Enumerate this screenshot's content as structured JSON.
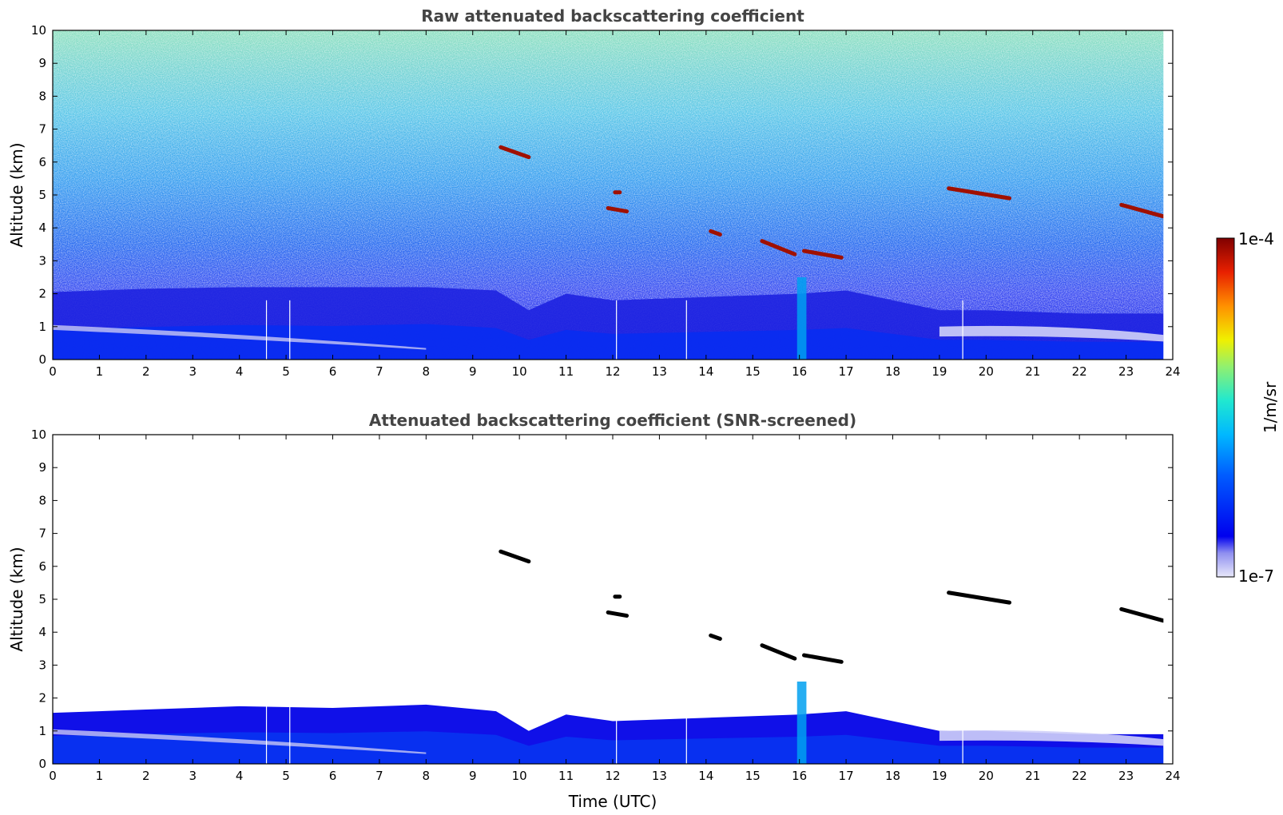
{
  "chart_data": [
    {
      "type": "heatmap",
      "title": "Raw attenuated backscattering coefficient",
      "xlabel": "",
      "ylabel": "Altitude (km)",
      "xlim": [
        0,
        24
      ],
      "ylim": [
        0,
        10
      ],
      "xticks": [
        "0",
        "1",
        "2",
        "3",
        "4",
        "5",
        "6",
        "7",
        "8",
        "9",
        "10",
        "11",
        "12",
        "13",
        "14",
        "15",
        "16",
        "17",
        "18",
        "19",
        "20",
        "21",
        "22",
        "23",
        "24"
      ],
      "yticks": [
        "0",
        "1",
        "2",
        "3",
        "4",
        "5",
        "6",
        "7",
        "8",
        "9",
        "10"
      ],
      "grid": false,
      "data_gaps_utc": [
        4.58,
        5.08,
        12.08,
        13.58,
        19.5
      ],
      "cloud_layers": [
        {
          "t_start": 9.6,
          "t_end": 10.2,
          "alt_start": 6.45,
          "alt_end": 6.15
        },
        {
          "t_start": 11.9,
          "t_end": 12.3,
          "alt_start": 4.6,
          "alt_end": 4.5
        },
        {
          "t_start": 12.05,
          "t_end": 12.15,
          "alt_start": 5.08,
          "alt_end": 5.08
        },
        {
          "t_start": 14.1,
          "t_end": 14.3,
          "alt_start": 3.9,
          "alt_end": 3.8
        },
        {
          "t_start": 15.2,
          "t_end": 15.9,
          "alt_start": 3.6,
          "alt_end": 3.2
        },
        {
          "t_start": 16.1,
          "t_end": 16.9,
          "alt_start": 3.3,
          "alt_end": 3.1
        },
        {
          "t_start": 19.2,
          "t_end": 20.5,
          "alt_start": 5.2,
          "alt_end": 4.9
        },
        {
          "t_start": 22.9,
          "t_end": 23.8,
          "alt_start": 4.7,
          "alt_end": 4.35
        }
      ]
    },
    {
      "type": "heatmap",
      "title": "Attenuated backscattering coefficient (SNR-screened)",
      "xlabel": "Time (UTC)",
      "ylabel": "Altitude (km)",
      "xlim": [
        0,
        24
      ],
      "ylim": [
        0,
        10
      ],
      "xticks": [
        "0",
        "1",
        "2",
        "3",
        "4",
        "5",
        "6",
        "7",
        "8",
        "9",
        "10",
        "11",
        "12",
        "13",
        "14",
        "15",
        "16",
        "17",
        "18",
        "19",
        "20",
        "21",
        "22",
        "23",
        "24"
      ],
      "yticks": [
        "0",
        "1",
        "2",
        "3",
        "4",
        "5",
        "6",
        "7",
        "8",
        "9",
        "10"
      ],
      "grid": false,
      "boundary_layer_top_km": {
        "t": [
          0,
          2,
          4,
          6,
          8,
          9.5,
          10.2,
          11,
          12,
          14,
          16,
          17,
          18,
          19,
          20,
          22,
          23.8
        ],
        "alt": [
          1.55,
          1.65,
          1.75,
          1.7,
          1.8,
          1.6,
          1.0,
          1.5,
          1.3,
          1.4,
          1.5,
          1.6,
          1.3,
          1.0,
          1.0,
          0.9,
          0.9
        ]
      }
    }
  ],
  "colorbar": {
    "label": "1/m/sr",
    "min_label": "1e-7",
    "max_label": "1e-4",
    "scale": "log",
    "colormap": "jet",
    "colors": [
      "#ffffff",
      "#d8d8f8",
      "#0000e6",
      "#0a50ff",
      "#00b4ff",
      "#28e6c8",
      "#96f064",
      "#f0f000",
      "#ff9600",
      "#e61e00",
      "#800000"
    ]
  }
}
